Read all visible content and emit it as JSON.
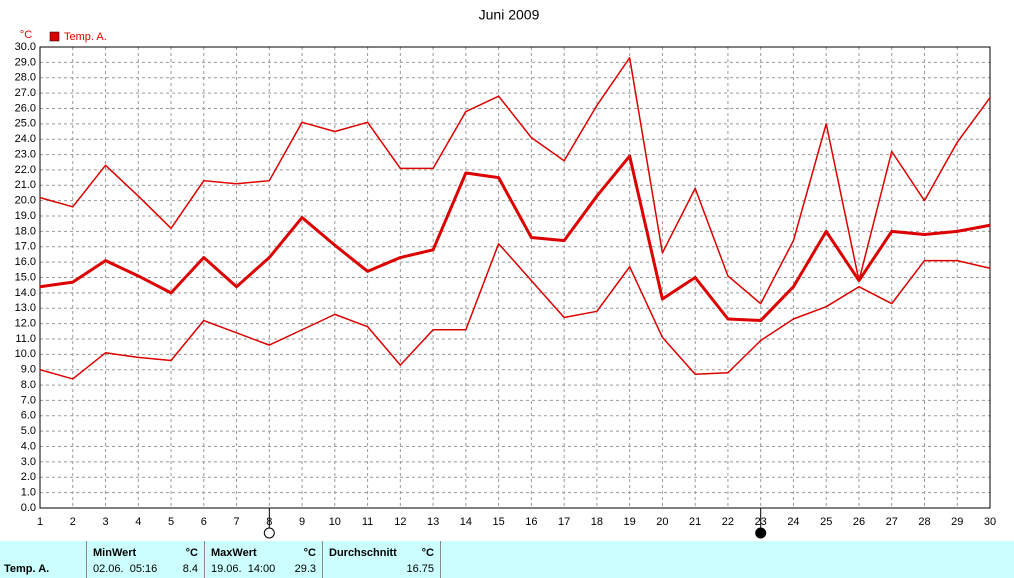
{
  "chart_data": {
    "type": "line",
    "title": "Juni 2009",
    "y_unit": "°C",
    "x": [
      1,
      2,
      3,
      4,
      5,
      6,
      7,
      8,
      9,
      10,
      11,
      12,
      13,
      14,
      15,
      16,
      17,
      18,
      19,
      20,
      21,
      22,
      23,
      24,
      25,
      26,
      27,
      28,
      29,
      30
    ],
    "series": [
      {
        "name": "Temp. A.",
        "color": "#dd0000",
        "values": [
          14.4,
          14.7,
          16.1,
          15.1,
          14.0,
          16.3,
          14.4,
          16.3,
          18.9,
          17.1,
          15.4,
          16.3,
          16.8,
          21.8,
          21.5,
          17.6,
          17.4,
          20.3,
          22.9,
          13.6,
          15.0,
          12.3,
          12.2,
          14.4,
          18.0,
          14.8,
          18.0,
          17.8,
          18.0,
          18.4
        ],
        "high": [
          20.2,
          19.6,
          22.3,
          20.3,
          18.2,
          21.3,
          21.1,
          21.3,
          25.1,
          24.5,
          25.1,
          22.1,
          22.1,
          25.8,
          26.8,
          24.1,
          22.6,
          26.2,
          29.3,
          16.6,
          20.8,
          15.1,
          13.3,
          17.4,
          25.0,
          14.8,
          23.2,
          20.0,
          23.8,
          26.7
        ],
        "low": [
          9.0,
          8.4,
          10.1,
          9.8,
          9.6,
          12.2,
          11.4,
          10.6,
          11.6,
          12.6,
          11.8,
          9.3,
          11.6,
          11.6,
          17.2,
          14.8,
          12.4,
          12.8,
          15.7,
          11.1,
          8.7,
          8.8,
          10.9,
          12.3,
          13.1,
          14.4,
          13.3,
          16.1,
          16.1,
          15.6
        ]
      }
    ],
    "xlim": [
      1,
      30
    ],
    "xticks": [
      1,
      2,
      3,
      4,
      5,
      6,
      7,
      8,
      9,
      10,
      11,
      12,
      13,
      14,
      15,
      16,
      17,
      18,
      19,
      20,
      21,
      22,
      23,
      24,
      25,
      26,
      27,
      28,
      29,
      30
    ],
    "ylim": [
      0,
      30
    ],
    "yticks": [
      {
        "value": 0,
        "label": "0.0"
      },
      {
        "value": 1,
        "label": "1.0"
      },
      {
        "value": 2,
        "label": "2.0"
      },
      {
        "value": 3,
        "label": "3.0"
      },
      {
        "value": 4,
        "label": "4.0"
      },
      {
        "value": 5,
        "label": "5.0"
      },
      {
        "value": 6,
        "label": "6.0"
      },
      {
        "value": 7,
        "label": "7.0"
      },
      {
        "value": 8,
        "label": "8.0"
      },
      {
        "value": 9,
        "label": "9.0"
      },
      {
        "value": 10,
        "label": "10.0"
      },
      {
        "value": 11,
        "label": "11.0"
      },
      {
        "value": 12,
        "label": "12.0"
      },
      {
        "value": 13,
        "label": "13.0"
      },
      {
        "value": 14,
        "label": "14.0"
      },
      {
        "value": 15,
        "label": "15.0"
      },
      {
        "value": 16,
        "label": "16.0"
      },
      {
        "value": 17,
        "label": "17.0"
      },
      {
        "value": 18,
        "label": "18.0"
      },
      {
        "value": 19,
        "label": "19.0"
      },
      {
        "value": 20,
        "label": "20.0"
      },
      {
        "value": 21,
        "label": "21.0"
      },
      {
        "value": 22,
        "label": "22.0"
      },
      {
        "value": 23,
        "label": "23.0"
      },
      {
        "value": 24,
        "label": "24.0"
      },
      {
        "value": 25,
        "label": "25.0"
      },
      {
        "value": 26,
        "label": "26.0"
      },
      {
        "value": 27,
        "label": "27.0"
      },
      {
        "value": 28,
        "label": "28.0"
      },
      {
        "value": 29,
        "label": "29.0"
      },
      {
        "value": 30,
        "label": "30.0"
      }
    ],
    "grid": true,
    "moon_phases": [
      {
        "x": 8,
        "filled": false
      },
      {
        "x": 23,
        "filled": true
      }
    ]
  },
  "table": {
    "row_label": "Temp. A.",
    "columns": [
      {
        "header": "MinWert",
        "unit": "°C",
        "when": "02.06.  05:16",
        "value": "8.4"
      },
      {
        "header": "MaxWert",
        "unit": "°C",
        "when": "19.06.  14:00",
        "value": "29.3"
      },
      {
        "header": "Durchschnitt",
        "unit": "°C",
        "value": "16.75"
      }
    ]
  }
}
